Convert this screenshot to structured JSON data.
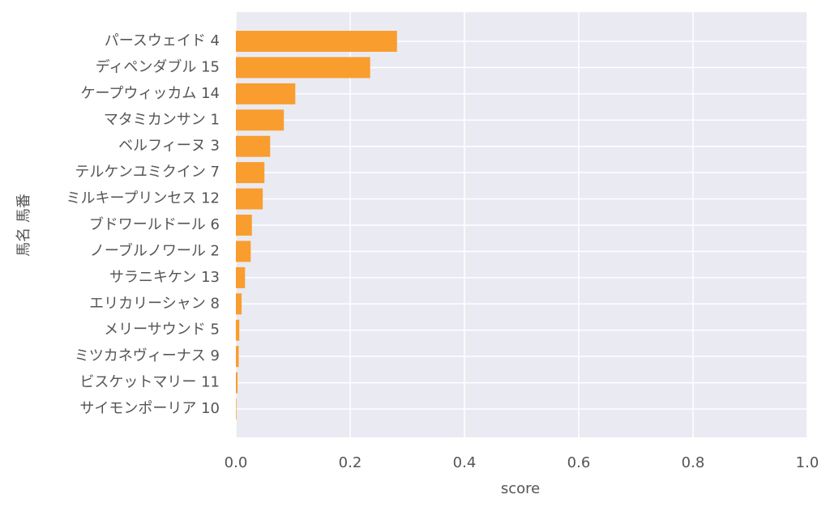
{
  "chart_data": {
    "type": "barh",
    "categories": [
      "パースウェイド 4",
      "ディペンダブル 15",
      "ケープウィッカム 14",
      "マタミカンサン 1",
      "ベルフィーヌ 3",
      "テルケンユミクイン 7",
      "ミルキープリンセス 12",
      "ブドワールドール 6",
      "ノーブルノワール 2",
      "サラニキケン 13",
      "エリカリーシャン 8",
      "メリーサウンド 5",
      "ミツカネヴィーナス 9",
      "ビスケットマリー 11",
      "サイモンポーリア 10"
    ],
    "values": [
      0.282,
      0.235,
      0.104,
      0.084,
      0.06,
      0.05,
      0.047,
      0.028,
      0.026,
      0.016,
      0.01,
      0.006,
      0.005,
      0.003,
      0.001
    ],
    "color": "#f99d2f",
    "xlim": [
      0,
      1
    ],
    "xticks": [
      {
        "value": 0,
        "label": "0.0"
      },
      {
        "value": 0.2,
        "label": "0.2"
      },
      {
        "value": 0.4,
        "label": "0.4"
      },
      {
        "value": 0.6,
        "label": "0.6"
      },
      {
        "value": 0.8,
        "label": "0.8"
      },
      {
        "value": 1,
        "label": "1.0"
      }
    ],
    "xlabel": "score",
    "ylabel": "馬名 馬番",
    "grid": true
  }
}
